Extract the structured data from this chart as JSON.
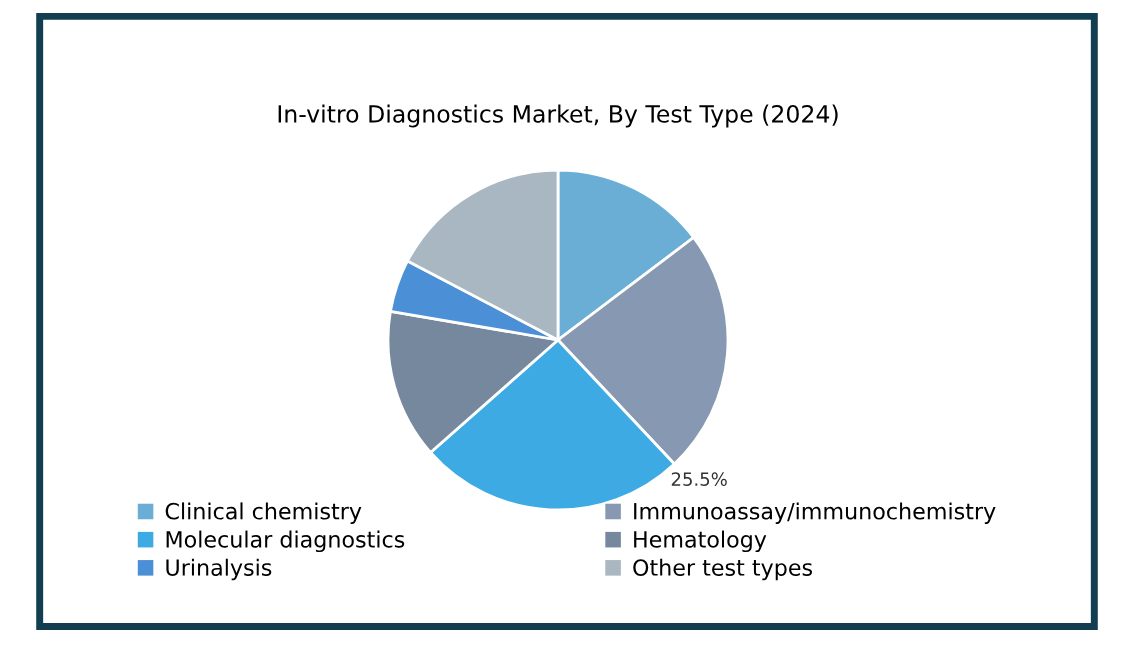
{
  "chart_data": {
    "type": "pie",
    "title": "In-vitro Diagnostics Market, By Test Type (2024)",
    "categories": [
      "Clinical chemistry",
      "Immunoassay/immunochemistry",
      "Molecular diagnostics",
      "Hematology",
      "Urinalysis",
      "Other test types"
    ],
    "values": [
      14.7,
      23.3,
      25.5,
      14.2,
      5.0,
      17.3
    ],
    "colors": [
      "#6aaed6",
      "#8798b2",
      "#3eaae3",
      "#76889e",
      "#4b8fd6",
      "#a9b7c2"
    ],
    "value_labels": [
      null,
      null,
      "25.5%",
      null,
      null,
      null
    ],
    "legend": "bottom"
  }
}
